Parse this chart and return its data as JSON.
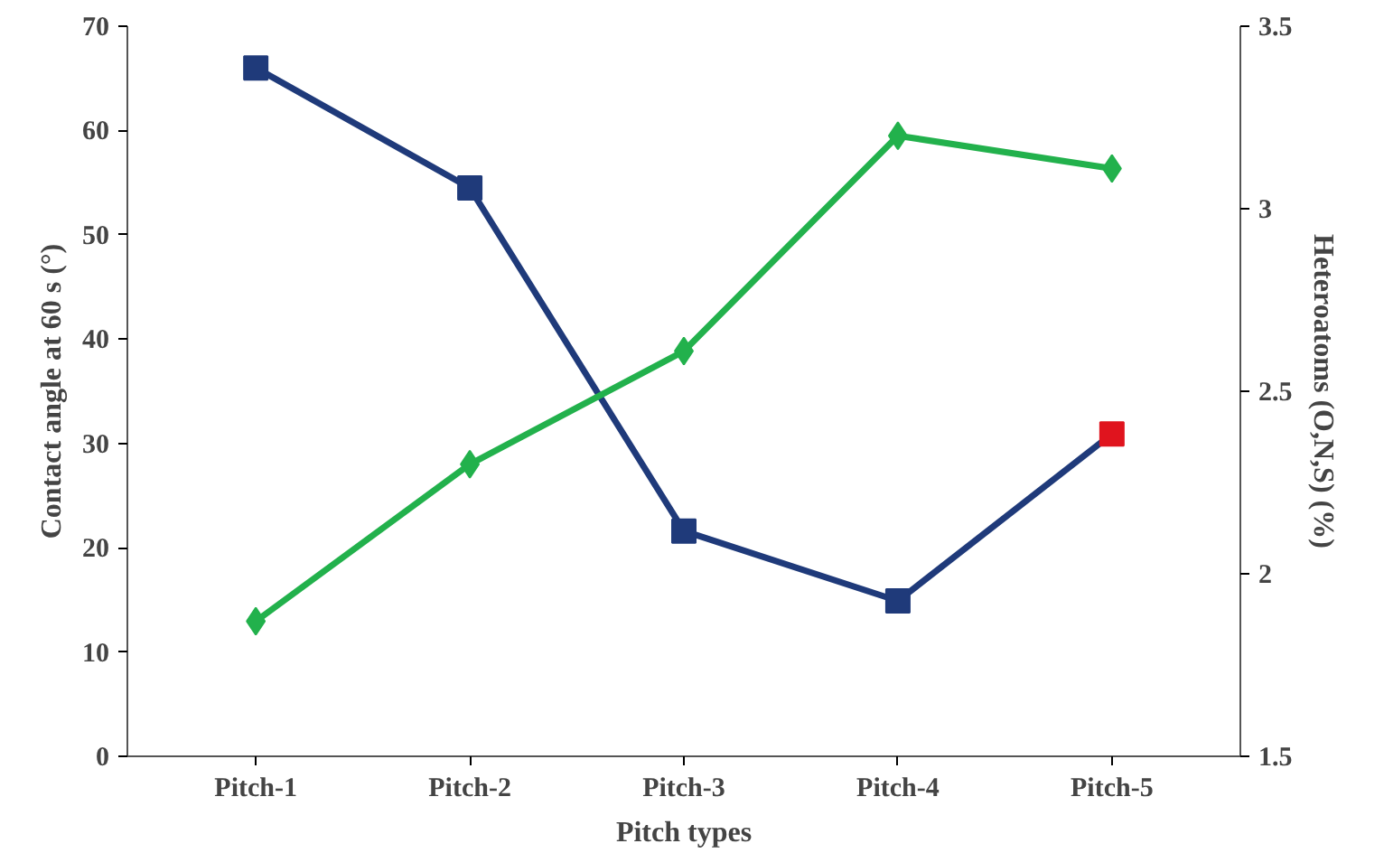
{
  "chart_data": {
    "type": "line",
    "xlabel": "Pitch types",
    "ylabel": "Contact angle at 60 s (°)",
    "y2label": "Heteroatoms (O,N,S) (%)",
    "categories": [
      "Pitch-1",
      "Pitch-2",
      "Pitch-3",
      "Pitch-4",
      "Pitch-5"
    ],
    "series": [
      {
        "color": "#1f3a7a",
        "colors": [
          "#1f3a7a",
          "#1f3a7a",
          "#1f3a7a",
          "#1f3a7a",
          "#e0141e"
        ],
        "marker": "square",
        "values": [
          66,
          54.5,
          21.6,
          14.9,
          30.9
        ]
      },
      {
        "color": "#22b14c",
        "marker": "diamond",
        "axis": "y2",
        "values": [
          1.87,
          2.3,
          2.61,
          3.2,
          3.11
        ]
      }
    ],
    "ylim": [
      0,
      70
    ],
    "yticks": [
      0,
      10,
      20,
      30,
      40,
      50,
      60,
      70
    ],
    "y2lim": [
      1.5,
      3.5
    ],
    "y2ticks": [
      1.5,
      2,
      2.5,
      3,
      3.5
    ],
    "grid": false,
    "line_style": "solid"
  }
}
